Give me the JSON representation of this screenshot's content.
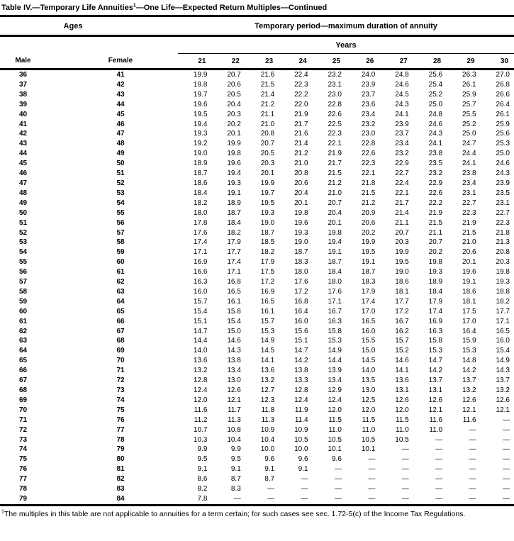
{
  "page": {
    "title_prefix": "Table IV.—Temporary Life Annuities",
    "title_sup": "1",
    "title_suffix": "—One Life—Expected Return Multiples—Continued",
    "footnote_sup": "1",
    "footnote_text": "The multiples in this table are not applicable to annuities for a term certain; for such cases see sec. 1.72-5(c) of the Income Tax Regulations."
  },
  "header": {
    "ages_label": "Ages",
    "period_label": "Temporary period—maximum duration of annuity",
    "years_label": "Years",
    "male_label": "Male",
    "female_label": "Female",
    "year_columns": [
      "21",
      "22",
      "23",
      "24",
      "25",
      "26",
      "27",
      "28",
      "29",
      "30"
    ]
  },
  "colors": {
    "text": "#000000",
    "background": "#ffffff",
    "rule": "#000000"
  },
  "table": {
    "rows": [
      {
        "male": "36",
        "female": "41",
        "values": [
          "19.9",
          "20.7",
          "21.6",
          "22.4",
          "23.2",
          "24.0",
          "24.8",
          "25.6",
          "26.3",
          "27.0"
        ]
      },
      {
        "male": "37",
        "female": "42",
        "values": [
          "19.8",
          "20.6",
          "21.5",
          "22.3",
          "23.1",
          "23.9",
          "24.6",
          "25.4",
          "26.1",
          "26.8"
        ]
      },
      {
        "male": "38",
        "female": "43",
        "values": [
          "19.7",
          "20.5",
          "21.4",
          "22.2",
          "23.0",
          "23.7",
          "24.5",
          "25.2",
          "25.9",
          "26.6"
        ]
      },
      {
        "male": "39",
        "female": "44",
        "values": [
          "19.6",
          "20.4",
          "21.2",
          "22.0",
          "22.8",
          "23.6",
          "24.3",
          "25.0",
          "25.7",
          "26.4"
        ]
      },
      {
        "male": "40",
        "female": "45",
        "values": [
          "19.5",
          "20.3",
          "21.1",
          "21.9",
          "22.6",
          "23.4",
          "24.1",
          "24.8",
          "25.5",
          "26.1"
        ]
      },
      {
        "male": "41",
        "female": "46",
        "values": [
          "19.4",
          "20.2",
          "21.0",
          "21.7",
          "22.5",
          "23.2",
          "23.9",
          "24.6",
          "25.2",
          "25.9"
        ]
      },
      {
        "male": "42",
        "female": "47",
        "values": [
          "19.3",
          "20.1",
          "20.8",
          "21.6",
          "22.3",
          "23.0",
          "23.7",
          "24.3",
          "25.0",
          "25.6"
        ]
      },
      {
        "male": "43",
        "female": "48",
        "values": [
          "19.2",
          "19.9",
          "20.7",
          "21.4",
          "22.1",
          "22.8",
          "23.4",
          "24.1",
          "24.7",
          "25.3"
        ]
      },
      {
        "male": "44",
        "female": "49",
        "values": [
          "19.0",
          "19.8",
          "20.5",
          "21.2",
          "21.9",
          "22.6",
          "23.2",
          "23.8",
          "24.4",
          "25.0"
        ]
      },
      {
        "male": "45",
        "female": "50",
        "values": [
          "18.9",
          "19.6",
          "20.3",
          "21.0",
          "21.7",
          "22.3",
          "22.9",
          "23.5",
          "24.1",
          "24.6"
        ]
      },
      {
        "male": "46",
        "female": "51",
        "values": [
          "18.7",
          "19.4",
          "20.1",
          "20.8",
          "21.5",
          "22.1",
          "22.7",
          "23.2",
          "23.8",
          "24.3"
        ]
      },
      {
        "male": "47",
        "female": "52",
        "values": [
          "18.6",
          "19.3",
          "19.9",
          "20.6",
          "21.2",
          "21.8",
          "22.4",
          "22.9",
          "23.4",
          "23.9"
        ]
      },
      {
        "male": "48",
        "female": "53",
        "values": [
          "18.4",
          "19.1",
          "19.7",
          "20.4",
          "21.0",
          "21.5",
          "22.1",
          "22.6",
          "23.1",
          "23.5"
        ]
      },
      {
        "male": "49",
        "female": "54",
        "values": [
          "18.2",
          "18.9",
          "19.5",
          "20.1",
          "20.7",
          "21.2",
          "21.7",
          "22.2",
          "22.7",
          "23.1"
        ]
      },
      {
        "male": "50",
        "female": "55",
        "values": [
          "18.0",
          "18.7",
          "19.3",
          "19.8",
          "20.4",
          "20.9",
          "21.4",
          "21.9",
          "22.3",
          "22.7"
        ]
      },
      {
        "male": "51",
        "female": "56",
        "values": [
          "17.8",
          "18.4",
          "19.0",
          "19.6",
          "20.1",
          "20.6",
          "21.1",
          "21.5",
          "21.9",
          "22.3"
        ]
      },
      {
        "male": "52",
        "female": "57",
        "values": [
          "17.6",
          "18.2",
          "18.7",
          "19.3",
          "19.8",
          "20.2",
          "20.7",
          "21.1",
          "21.5",
          "21.8"
        ]
      },
      {
        "male": "53",
        "female": "58",
        "values": [
          "17.4",
          "17.9",
          "18.5",
          "19.0",
          "19.4",
          "19.9",
          "20.3",
          "20.7",
          "21.0",
          "21.3"
        ]
      },
      {
        "male": "54",
        "female": "59",
        "values": [
          "17.1",
          "17.7",
          "18.2",
          "18.7",
          "19.1",
          "19.5",
          "19.9",
          "20.2",
          "20.6",
          "20.8"
        ]
      },
      {
        "male": "55",
        "female": "60",
        "values": [
          "16.9",
          "17.4",
          "17.9",
          "18.3",
          "18.7",
          "19.1",
          "19.5",
          "19.8",
          "20.1",
          "20.3"
        ]
      },
      {
        "male": "56",
        "female": "61",
        "values": [
          "16.6",
          "17.1",
          "17.5",
          "18.0",
          "18.4",
          "18.7",
          "19.0",
          "19.3",
          "19.6",
          "19.8"
        ]
      },
      {
        "male": "57",
        "female": "62",
        "values": [
          "16.3",
          "16.8",
          "17.2",
          "17.6",
          "18.0",
          "18.3",
          "18.6",
          "18.9",
          "19.1",
          "19.3"
        ]
      },
      {
        "male": "58",
        "female": "63",
        "values": [
          "16.0",
          "16.5",
          "16.9",
          "17.2",
          "17.6",
          "17.9",
          "18.1",
          "18.4",
          "18.6",
          "18.8"
        ]
      },
      {
        "male": "59",
        "female": "64",
        "values": [
          "15.7",
          "16.1",
          "16.5",
          "16.8",
          "17.1",
          "17.4",
          "17.7",
          "17.9",
          "18.1",
          "18.2"
        ]
      },
      {
        "male": "60",
        "female": "65",
        "values": [
          "15.4",
          "15.8",
          "16.1",
          "16.4",
          "16.7",
          "17.0",
          "17.2",
          "17.4",
          "17.5",
          "17.7"
        ]
      },
      {
        "male": "61",
        "female": "66",
        "values": [
          "15.1",
          "15.4",
          "15.7",
          "16.0",
          "16.3",
          "16.5",
          "16.7",
          "16.9",
          "17.0",
          "17.1"
        ]
      },
      {
        "male": "62",
        "female": "67",
        "values": [
          "14.7",
          "15.0",
          "15.3",
          "15.6",
          "15.8",
          "16.0",
          "16.2",
          "16.3",
          "16.4",
          "16.5"
        ]
      },
      {
        "male": "63",
        "female": "68",
        "values": [
          "14.4",
          "14.6",
          "14.9",
          "15.1",
          "15.3",
          "15.5",
          "15.7",
          "15.8",
          "15.9",
          "16.0"
        ]
      },
      {
        "male": "64",
        "female": "69",
        "values": [
          "14.0",
          "14.3",
          "14.5",
          "14.7",
          "14.9",
          "15.0",
          "15.2",
          "15.3",
          "15.3",
          "15.4"
        ]
      },
      {
        "male": "65",
        "female": "70",
        "values": [
          "13.6",
          "13.8",
          "14.1",
          "14.2",
          "14.4",
          "14.5",
          "14.6",
          "14.7",
          "14.8",
          "14.9"
        ]
      },
      {
        "male": "66",
        "female": "71",
        "values": [
          "13.2",
          "13.4",
          "13.6",
          "13.8",
          "13.9",
          "14.0",
          "14.1",
          "14.2",
          "14.2",
          "14.3"
        ]
      },
      {
        "male": "67",
        "female": "72",
        "values": [
          "12.8",
          "13.0",
          "13.2",
          "13.3",
          "13.4",
          "13.5",
          "13.6",
          "13.7",
          "13.7",
          "13.7"
        ]
      },
      {
        "male": "68",
        "female": "73",
        "values": [
          "12.4",
          "12.6",
          "12.7",
          "12.8",
          "12.9",
          "13.0",
          "13.1",
          "13.1",
          "13.2",
          "13.2"
        ]
      },
      {
        "male": "69",
        "female": "74",
        "values": [
          "12.0",
          "12.1",
          "12.3",
          "12.4",
          "12.4",
          "12.5",
          "12.6",
          "12.6",
          "12.6",
          "12.6"
        ]
      },
      {
        "male": "70",
        "female": "75",
        "values": [
          "11.6",
          "11.7",
          "11.8",
          "11.9",
          "12.0",
          "12.0",
          "12.0",
          "12.1",
          "12.1",
          "12.1"
        ]
      },
      {
        "male": "71",
        "female": "76",
        "values": [
          "11.2",
          "11.3",
          "11.3",
          "11.4",
          "11.5",
          "11.5",
          "11.5",
          "11.6",
          "11.6",
          "—"
        ]
      },
      {
        "male": "72",
        "female": "77",
        "values": [
          "10.7",
          "10.8",
          "10.9",
          "10.9",
          "11.0",
          "11.0",
          "11.0",
          "11.0",
          "—",
          "—"
        ]
      },
      {
        "male": "73",
        "female": "78",
        "values": [
          "10.3",
          "10.4",
          "10.4",
          "10.5",
          "10.5",
          "10.5",
          "10.5",
          "—",
          "—",
          "—"
        ]
      },
      {
        "male": "74",
        "female": "79",
        "values": [
          "9.9",
          "9.9",
          "10.0",
          "10.0",
          "10.1",
          "10.1",
          "—",
          "—",
          "—",
          "—"
        ]
      },
      {
        "male": "75",
        "female": "80",
        "values": [
          "9.5",
          "9.5",
          "9.6",
          "9.6",
          "9.6",
          "—",
          "—",
          "—",
          "—",
          "—"
        ]
      },
      {
        "male": "76",
        "female": "81",
        "values": [
          "9.1",
          "9.1",
          "9.1",
          "9.1",
          "—",
          "—",
          "—",
          "—",
          "—",
          "—"
        ]
      },
      {
        "male": "77",
        "female": "82",
        "values": [
          "8.6",
          "8.7",
          "8.7",
          "—",
          "—",
          "—",
          "—",
          "—",
          "—",
          "—"
        ]
      },
      {
        "male": "78",
        "female": "83",
        "values": [
          "8.2",
          "8.3",
          "—",
          "—",
          "—",
          "—",
          "—",
          "—",
          "—",
          "—"
        ]
      },
      {
        "male": "79",
        "female": "84",
        "values": [
          "7.8",
          "—",
          "—",
          "—",
          "—",
          "—",
          "—",
          "—",
          "—",
          "—"
        ]
      }
    ]
  }
}
